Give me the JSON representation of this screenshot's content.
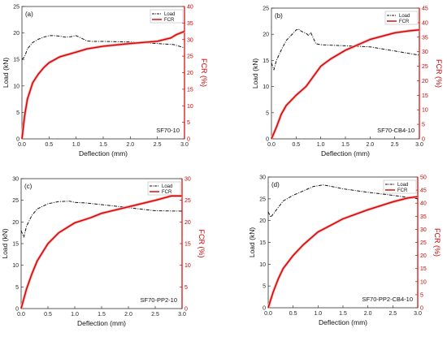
{
  "colors": {
    "load": "#111111",
    "fcr": "#d40000",
    "fcr_band": "#f3a3a3",
    "fcr_core": "#8a2b10"
  },
  "chart_data": [
    {
      "type": "line",
      "panel_label": "(a)",
      "sample_label": "SF70-10",
      "xlabel": "Deflection (mm)",
      "ylabel": "Load (kN)",
      "y2label": "FCR (%)",
      "xlim": [
        0,
        3.0
      ],
      "xticks": [
        "0.0",
        "0.5",
        "1.0",
        "1.5",
        "2.0",
        "2.5",
        "3.0"
      ],
      "ylim": [
        0,
        25
      ],
      "yticks": [
        "0",
        "5",
        "10",
        "15",
        "20",
        "25"
      ],
      "y2lim": [
        0,
        40
      ],
      "y2ticks": [
        "0",
        "5",
        "10",
        "15",
        "20",
        "25",
        "30",
        "35",
        "40"
      ],
      "legend": [
        "Load",
        "FCR"
      ],
      "legend_position": "top-right",
      "series": [
        {
          "name": "Load",
          "axis": "left",
          "style": "dash-dot",
          "x": [
            0,
            0.05,
            0.1,
            0.2,
            0.3,
            0.4,
            0.5,
            0.6,
            0.7,
            0.8,
            0.9,
            1.0,
            1.1,
            1.2,
            1.3,
            1.5,
            2.0,
            2.5,
            2.8,
            3.0
          ],
          "y": [
            15,
            15.5,
            17,
            18.2,
            18.8,
            19.2,
            19.5,
            19.5,
            19.4,
            19.2,
            19.3,
            19.5,
            19.0,
            18.5,
            18.4,
            18.4,
            18.3,
            18.0,
            17.8,
            17.2
          ]
        },
        {
          "name": "FCR",
          "axis": "right",
          "style": "solid",
          "x": [
            0,
            0.05,
            0.1,
            0.2,
            0.3,
            0.4,
            0.5,
            0.7,
            1.0,
            1.2,
            1.5,
            2.0,
            2.5,
            2.75,
            2.85,
            3.0
          ],
          "y": [
            0,
            7,
            12,
            17,
            19.5,
            21.5,
            23,
            24.8,
            26.2,
            27.2,
            28,
            28.8,
            29.5,
            30.5,
            31.5,
            32.5
          ]
        }
      ]
    },
    {
      "type": "line",
      "panel_label": "(b)",
      "sample_label": "SF70-CB4-10",
      "xlabel": "Deflection (mm)",
      "ylabel": "Load (kN)",
      "y2label": "FCR (%)",
      "xlim": [
        0,
        3.0
      ],
      "xticks": [
        "0.0",
        "0.5",
        "1.0",
        "1.5",
        "2.0",
        "2.5",
        "3.0"
      ],
      "ylim": [
        0,
        25
      ],
      "yticks": [
        "0",
        "5",
        "10",
        "15",
        "20",
        "25"
      ],
      "y2lim": [
        0,
        45
      ],
      "y2ticks": [
        "0",
        "5",
        "10",
        "15",
        "20",
        "25",
        "30",
        "35",
        "40",
        "45"
      ],
      "legend": [
        "Load",
        "FCR"
      ],
      "legend_position": "top-right",
      "series": [
        {
          "name": "Load",
          "axis": "left",
          "style": "dash-dot",
          "x": [
            0,
            0.05,
            0.1,
            0.2,
            0.3,
            0.4,
            0.5,
            0.55,
            0.6,
            0.7,
            0.75,
            0.8,
            0.9,
            1.0,
            1.5,
            2.0,
            2.5,
            3.0
          ],
          "y": [
            14.5,
            13.2,
            15,
            17,
            18.8,
            19.8,
            20.8,
            21,
            20.6,
            20.2,
            19.8,
            20.3,
            18.2,
            18.0,
            17.8,
            17.6,
            16.8,
            16.0
          ]
        },
        {
          "name": "FCR",
          "axis": "right",
          "style": "solid",
          "x": [
            0,
            0.1,
            0.2,
            0.3,
            0.5,
            0.7,
            1.0,
            1.2,
            1.5,
            2.0,
            2.5,
            2.8,
            3.0
          ],
          "y": [
            0,
            4,
            8.5,
            11.5,
            15,
            18,
            25,
            27.5,
            30.5,
            34.2,
            36.5,
            37.2,
            37.5
          ]
        }
      ]
    },
    {
      "type": "line",
      "panel_label": "(c)",
      "sample_label": "SF70-PP2-10",
      "xlabel": "Deflection (mm)",
      "ylabel": "Load (kN)",
      "y2label": "FCR (%)",
      "xlim": [
        0,
        3.0
      ],
      "xticks": [
        "0.0",
        "0.5",
        "1.0",
        "1.5",
        "2.0",
        "2.5",
        "3.0"
      ],
      "ylim": [
        0,
        30
      ],
      "yticks": [
        "0",
        "5",
        "10",
        "15",
        "20",
        "25",
        "30"
      ],
      "y2lim": [
        0,
        30
      ],
      "y2ticks": [
        "0",
        "5",
        "10",
        "15",
        "20",
        "25",
        "30"
      ],
      "legend": [
        "Load",
        "FCR"
      ],
      "legend_position": "top-right",
      "series": [
        {
          "name": "Load",
          "axis": "left",
          "style": "dash-dot",
          "x": [
            0,
            0.05,
            0.1,
            0.2,
            0.3,
            0.5,
            0.7,
            0.9,
            1.0,
            1.2,
            1.5,
            2.0,
            2.5,
            3.0
          ],
          "y": [
            18,
            16.5,
            19,
            21.5,
            23,
            24.2,
            24.7,
            24.8,
            24.5,
            24.4,
            24.0,
            23.3,
            22.6,
            22.5
          ]
        },
        {
          "name": "FCR",
          "axis": "right",
          "style": "solid",
          "x": [
            0,
            0.1,
            0.2,
            0.3,
            0.5,
            0.7,
            1.0,
            1.3,
            1.5,
            2.0,
            2.5,
            2.8,
            3.0
          ],
          "y": [
            0,
            4.5,
            8,
            11,
            15,
            17.5,
            19.8,
            21,
            22,
            23.5,
            25,
            26,
            26
          ]
        }
      ]
    },
    {
      "type": "line",
      "panel_label": "(d)",
      "sample_label": "SF70-PP2-CB4-10",
      "xlabel": "Deflection (mm)",
      "ylabel": "Load (kN)",
      "y2label": "FCR (%)",
      "xlim": [
        0,
        3.0
      ],
      "xticks": [
        "0.0",
        "0.5",
        "1.0",
        "1.5",
        "2.0",
        "2.5",
        "3.0"
      ],
      "ylim": [
        0,
        30
      ],
      "yticks": [
        "0",
        "5",
        "10",
        "15",
        "20",
        "25",
        "30"
      ],
      "y2lim": [
        0,
        50
      ],
      "y2ticks": [
        "0",
        "5",
        "10",
        "15",
        "20",
        "25",
        "30",
        "35",
        "40",
        "45",
        "50"
      ],
      "legend": [
        "Load",
        "FCR"
      ],
      "legend_position": "top-right",
      "series": [
        {
          "name": "Load",
          "axis": "left",
          "style": "dash-dot",
          "x": [
            0,
            0.05,
            0.1,
            0.2,
            0.3,
            0.5,
            0.7,
            0.9,
            1.0,
            1.1,
            1.2,
            1.5,
            2.0,
            2.5,
            3.0
          ],
          "y": [
            22,
            20.8,
            21.5,
            23,
            24.5,
            25.8,
            26.8,
            27.8,
            28.0,
            28.2,
            28.0,
            27.3,
            26.5,
            25.8,
            25.0
          ]
        },
        {
          "name": "FCR",
          "axis": "right",
          "style": "solid",
          "x": [
            0,
            0.1,
            0.2,
            0.3,
            0.5,
            0.7,
            1.0,
            1.3,
            1.5,
            2.0,
            2.5,
            2.8,
            3.0
          ],
          "y": [
            0,
            6,
            11,
            15,
            20,
            24,
            29,
            32,
            34,
            37.5,
            40.5,
            42,
            42.5
          ]
        }
      ]
    }
  ]
}
